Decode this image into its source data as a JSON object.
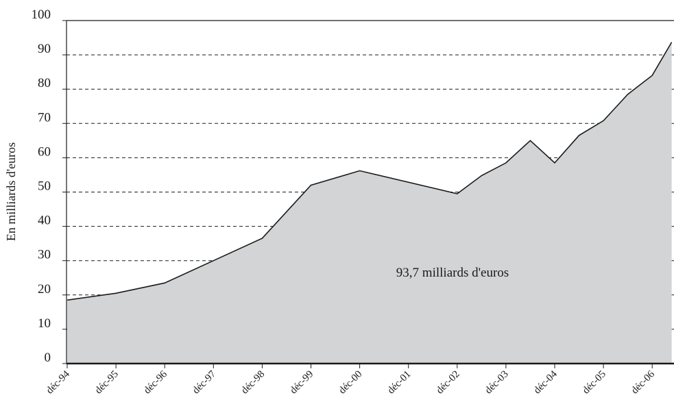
{
  "chart_data": {
    "type": "area",
    "title": "",
    "xlabel": "",
    "ylabel": "En milliards d'euros",
    "ylim": [
      0,
      100
    ],
    "yticks": [
      0,
      10,
      20,
      30,
      40,
      50,
      60,
      70,
      80,
      90,
      100
    ],
    "categories": [
      "déc-94",
      "déc-95",
      "déc-96",
      "déc-97",
      "déc-98",
      "déc-99",
      "déc-00",
      "déc-01",
      "déc-02",
      "déc-03",
      "déc-04",
      "déc-05",
      "déc-06"
    ],
    "x": [
      1994.917,
      1995.917,
      1996.917,
      1997.917,
      1998.917,
      1999.917,
      2000.917,
      2002.917,
      2003.417,
      2003.917,
      2004.417,
      2004.917,
      2005.417,
      2005.917,
      2006.417,
      2006.917,
      2007.317
    ],
    "values": [
      18.5,
      20.5,
      23.5,
      30.0,
      36.5,
      52.0,
      56.2,
      49.5,
      54.8,
      58.5,
      65.0,
      58.5,
      66.5,
      70.8,
      78.5,
      84.0,
      93.7
    ],
    "grid": "horizontal dashed",
    "fill_color": "#d3d4d6",
    "line_color": "#1a1a1a",
    "annotation": "93,7 milliards d'euros"
  }
}
